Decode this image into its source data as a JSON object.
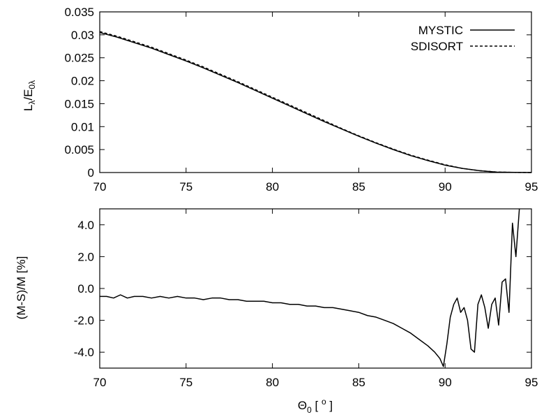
{
  "chart_data": [
    {
      "type": "line",
      "name": "top-panel",
      "xlim": [
        70,
        95
      ],
      "ylim": [
        0,
        0.035
      ],
      "x_ticks": [
        "70",
        "75",
        "80",
        "85",
        "90",
        "95"
      ],
      "y_ticks": [
        "0",
        "0.005",
        "0.01",
        "0.015",
        "0.02",
        "0.025",
        "0.03",
        "0.035"
      ],
      "ylabel": {
        "main": "L",
        "sub1": "λ",
        "slash": "/E",
        "sub2": "0λ"
      },
      "grid": false,
      "legend_position": "top-right",
      "series": [
        {
          "name": "MYSTIC",
          "style": "solid",
          "x": [
            70,
            71,
            72,
            73,
            74,
            75,
            76,
            77,
            78,
            79,
            80,
            81,
            82,
            83,
            84,
            85,
            86,
            87,
            88,
            89,
            90,
            91,
            92,
            93,
            94,
            95
          ],
          "y": [
            0.0305,
            0.0295,
            0.0283,
            0.0271,
            0.0257,
            0.0243,
            0.0228,
            0.0212,
            0.0196,
            0.0179,
            0.0162,
            0.0145,
            0.0128,
            0.0111,
            0.0095,
            0.0079,
            0.0064,
            0.005,
            0.0037,
            0.0026,
            0.0016,
            0.0009,
            0.0004,
            0.0001,
            3e-05,
            0.0
          ]
        },
        {
          "name": "SDISORT",
          "style": "dashed",
          "x": [
            70,
            71,
            72,
            73,
            74,
            75,
            76,
            77,
            78,
            79,
            80,
            81,
            82,
            83,
            84,
            85,
            86,
            87,
            88,
            89,
            90,
            91,
            92,
            93,
            94,
            95
          ],
          "y": [
            0.0307,
            0.0297,
            0.0285,
            0.0273,
            0.0259,
            0.0245,
            0.023,
            0.0214,
            0.0198,
            0.0181,
            0.0164,
            0.0147,
            0.013,
            0.0113,
            0.0096,
            0.008,
            0.0065,
            0.0051,
            0.0038,
            0.0027,
            0.0017,
            0.0009,
            0.0004,
            0.0001,
            3e-05,
            0.0
          ]
        }
      ]
    },
    {
      "type": "line",
      "name": "bottom-panel",
      "xlim": [
        70,
        95
      ],
      "ylim": [
        -5,
        5
      ],
      "x_ticks": [
        "70",
        "75",
        "80",
        "85",
        "90",
        "95"
      ],
      "y_ticks": [
        "-4.0",
        "-2.0",
        "0.0",
        "2.0",
        "4.0"
      ],
      "ylabel": "(M-S)/M [%]",
      "xlabel": {
        "main": "Θ",
        "sub": "0",
        "rest": " [ ",
        "sup": "o",
        "end": " ]"
      },
      "grid": false,
      "series": [
        {
          "name": "(M-S)/M",
          "style": "solid",
          "x": [
            70.0,
            70.4,
            70.8,
            71.2,
            71.6,
            72.0,
            72.5,
            73.0,
            73.5,
            74.0,
            74.5,
            75.0,
            75.5,
            76.0,
            76.5,
            77.0,
            77.5,
            78.0,
            78.5,
            79.0,
            79.5,
            80.0,
            80.5,
            81.0,
            81.5,
            82.0,
            82.5,
            83.0,
            83.5,
            84.0,
            84.5,
            85.0,
            85.5,
            86.0,
            86.5,
            87.0,
            87.5,
            88.0,
            88.5,
            89.0,
            89.4,
            89.7,
            89.9,
            90.1,
            90.3,
            90.5,
            90.7,
            90.9,
            91.1,
            91.3,
            91.5,
            91.7,
            91.9,
            92.1,
            92.3,
            92.5,
            92.7,
            92.9,
            93.1,
            93.3,
            93.5,
            93.7,
            93.9,
            94.1,
            94.3
          ],
          "y": [
            -0.5,
            -0.5,
            -0.6,
            -0.4,
            -0.6,
            -0.5,
            -0.5,
            -0.6,
            -0.5,
            -0.6,
            -0.5,
            -0.6,
            -0.6,
            -0.7,
            -0.6,
            -0.6,
            -0.7,
            -0.7,
            -0.8,
            -0.8,
            -0.8,
            -0.9,
            -0.9,
            -1.0,
            -1.0,
            -1.1,
            -1.1,
            -1.2,
            -1.2,
            -1.3,
            -1.4,
            -1.5,
            -1.7,
            -1.8,
            -2.0,
            -2.2,
            -2.5,
            -2.8,
            -3.2,
            -3.6,
            -4.0,
            -4.4,
            -4.9,
            -3.5,
            -1.8,
            -1.0,
            -0.6,
            -1.5,
            -1.2,
            -2.0,
            -3.8,
            -4.0,
            -1.0,
            -0.4,
            -1.2,
            -2.5,
            -1.0,
            -0.6,
            -2.3,
            0.4,
            0.6,
            -1.5,
            4.1,
            2.0,
            5.0
          ]
        }
      ]
    }
  ]
}
